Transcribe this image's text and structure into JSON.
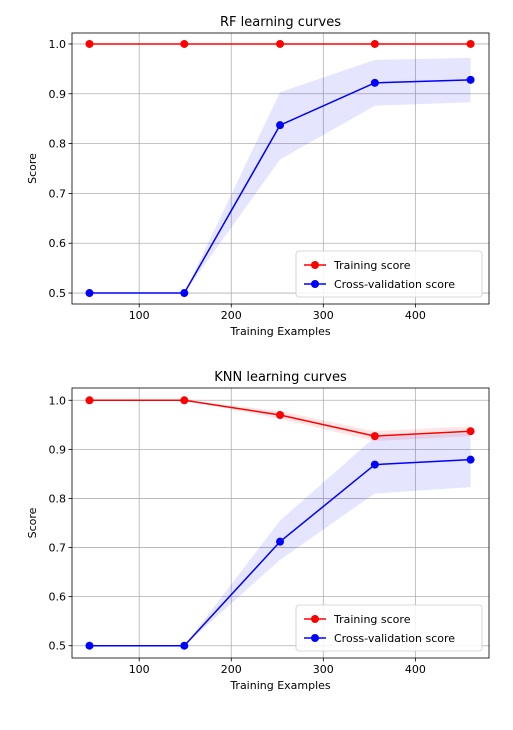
{
  "chart_data": [
    {
      "type": "line",
      "title": "RF learning curves",
      "xlabel": "Training Examples",
      "ylabel": "Score",
      "xlim": [
        27,
        480
      ],
      "ylim": [
        0.478,
        1.022
      ],
      "xticks": [
        100,
        200,
        300,
        400
      ],
      "yticks": [
        0.5,
        0.6,
        0.7,
        0.8,
        0.9,
        1.0
      ],
      "ytick_labels": [
        "0.5",
        "0.6",
        "0.7",
        "0.8",
        "0.9",
        "1.0"
      ],
      "grid": true,
      "legend_position": "lower right",
      "x": [
        46,
        149,
        253,
        356,
        460
      ],
      "series": [
        {
          "name": "Training score",
          "color": "#ff0000",
          "values": [
            1.0,
            1.0,
            1.0,
            1.0,
            1.0
          ],
          "band_lower": [
            1.0,
            1.0,
            1.0,
            1.0,
            1.0
          ],
          "band_upper": [
            1.0,
            1.0,
            1.0,
            1.0,
            1.0
          ]
        },
        {
          "name": "Cross-validation score",
          "color": "#0000ff",
          "values": [
            0.5,
            0.5,
            0.837,
            0.922,
            0.928
          ],
          "band_lower": [
            0.5,
            0.5,
            0.768,
            0.876,
            0.883
          ],
          "band_upper": [
            0.5,
            0.5,
            0.903,
            0.968,
            0.972
          ]
        }
      ]
    },
    {
      "type": "line",
      "title": "KNN learning curves",
      "xlabel": "Training Examples",
      "ylabel": "Score",
      "xlim": [
        27,
        480
      ],
      "ylim": [
        0.475,
        1.025
      ],
      "xticks": [
        100,
        200,
        300,
        400
      ],
      "yticks": [
        0.5,
        0.6,
        0.7,
        0.8,
        0.9,
        1.0
      ],
      "ytick_labels": [
        "0.5",
        "0.6",
        "0.7",
        "0.8",
        "0.9",
        "1.0"
      ],
      "grid": true,
      "legend_position": "lower right",
      "x": [
        46,
        149,
        253,
        356,
        460
      ],
      "series": [
        {
          "name": "Training score",
          "color": "#ff0000",
          "values": [
            1.0,
            1.0,
            0.97,
            0.927,
            0.937
          ],
          "band_lower": [
            1.0,
            1.0,
            0.962,
            0.917,
            0.927
          ],
          "band_upper": [
            1.0,
            1.0,
            0.978,
            0.937,
            0.947
          ]
        },
        {
          "name": "Cross-validation score",
          "color": "#0000ff",
          "values": [
            0.5,
            0.5,
            0.712,
            0.869,
            0.879
          ],
          "band_lower": [
            0.5,
            0.5,
            0.675,
            0.81,
            0.823
          ],
          "band_upper": [
            0.5,
            0.5,
            0.755,
            0.925,
            0.933
          ]
        }
      ]
    }
  ]
}
